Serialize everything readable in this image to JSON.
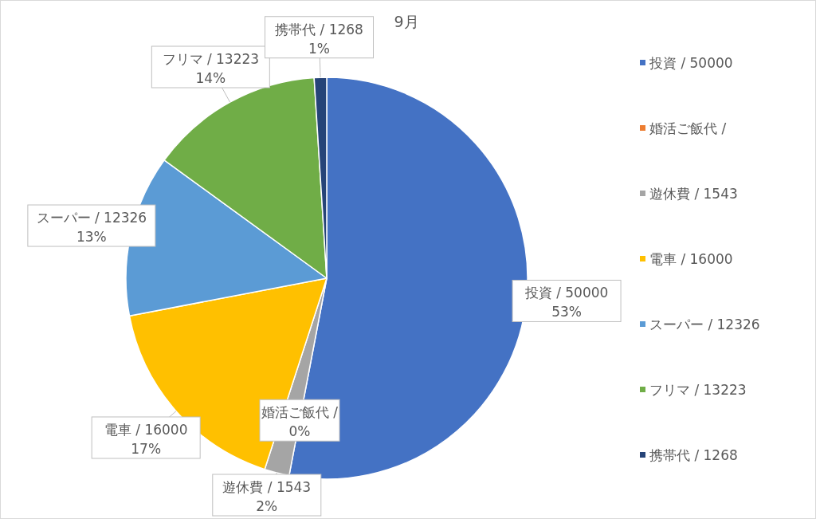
{
  "chart_data": {
    "type": "pie",
    "title": "9月",
    "categories": [
      "投資 / 50000",
      "婚活ご飯代 /",
      "遊休費 / 1543",
      "電車 / 16000",
      "スーパー / 12326",
      "フリマ / 13223",
      "携帯代 / 1268"
    ],
    "values": [
      53,
      0,
      2,
      17,
      13,
      14,
      1
    ],
    "value_labels": [
      "53%",
      "0%",
      "2%",
      "17%",
      "13%",
      "14%",
      "1%"
    ],
    "colors": [
      "#4472c4",
      "#ed7d31",
      "#a5a5a5",
      "#ffc000",
      "#5b9bd5",
      "#70ad47",
      "#264478"
    ],
    "legend": "right"
  }
}
